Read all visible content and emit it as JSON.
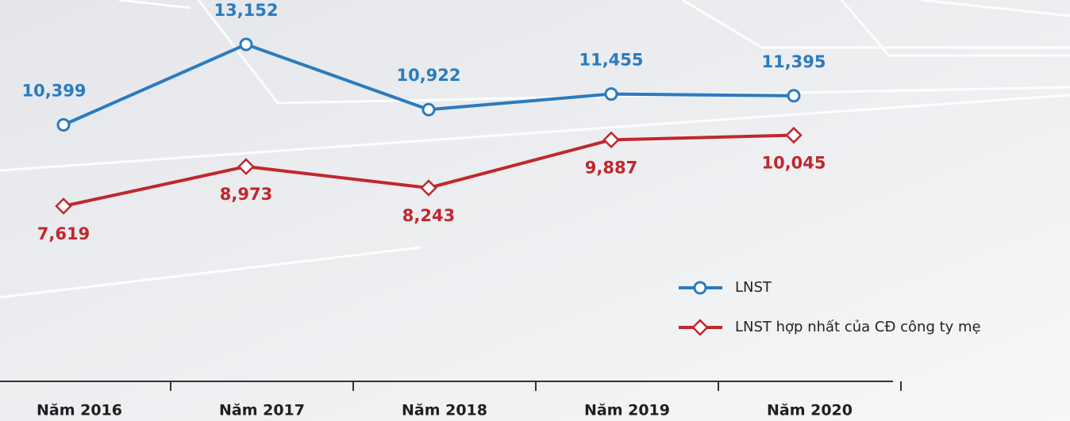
{
  "chart_data": {
    "type": "line",
    "categories": [
      "Năm 2016",
      "Năm 2017",
      "Năm 2018",
      "Năm 2019",
      "Năm 2020"
    ],
    "series": [
      {
        "name": "LNST",
        "color": "#2b7bbf",
        "marker": "circle",
        "values": [
          10399,
          13152,
          10922,
          11455,
          11395
        ],
        "value_labels": [
          "10,399",
          "13,152",
          "10,922",
          "11,455",
          "11,395"
        ]
      },
      {
        "name": "LNST hợp nhất của CĐ công ty mẹ",
        "color": "#c1272d",
        "marker": "diamond",
        "values": [
          7619,
          8973,
          8243,
          9887,
          10045
        ],
        "value_labels": [
          "7,619",
          "8,973",
          "8,243",
          "9,887",
          "10,045"
        ]
      }
    ],
    "legend": "lower right"
  }
}
